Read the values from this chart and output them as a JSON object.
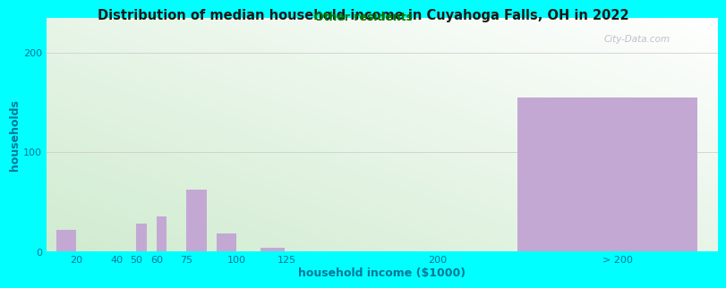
{
  "title": "Distribution of median household income in Cuyahoga Falls, OH in 2022",
  "subtitle": "Other residents",
  "xlabel": "household income ($1000)",
  "ylabel": "households",
  "background_color": "#00FFFF",
  "bar_color": "#c4a8d4",
  "title_color": "#1a1a1a",
  "subtitle_color": "#007700",
  "axis_label_color": "#007799",
  "tick_color": "#007799",
  "watermark": "City-Data.com",
  "xtick_labels": [
    "20",
    "40",
    "50",
    "60",
    "75",
    "100",
    "125",
    "200",
    "> 200"
  ],
  "xtick_positions": [
    20,
    40,
    50,
    60,
    75,
    100,
    125,
    200,
    290
  ],
  "bar_lefts": [
    10,
    45,
    50,
    60,
    75,
    90,
    112,
    162,
    240
  ],
  "bar_widths": [
    10,
    5,
    5,
    5,
    10,
    10,
    12,
    12,
    90
  ],
  "values": [
    22,
    0,
    28,
    35,
    62,
    18,
    4,
    0,
    155
  ],
  "yticks": [
    0,
    100,
    200
  ],
  "ylim": [
    0,
    235
  ],
  "xlim": [
    5,
    340
  ]
}
